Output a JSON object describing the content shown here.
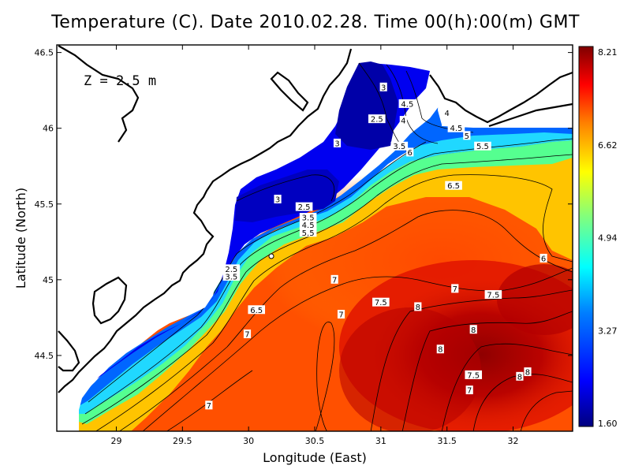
{
  "title": "Temperature (C). Date 2010.02.28. Time 00(h):00(m) GMT",
  "depth_label": "Z = 2.5 m",
  "chart_data": {
    "type": "heatmap",
    "variable": "Temperature (C)",
    "date": "2010.02.28",
    "time": "00(h):00(m) GMT",
    "depth": "2.5 m",
    "xlabel": "Longitude (East)",
    "ylabel": "Latitude (North)",
    "xlim": [
      28.55,
      32.45
    ],
    "ylim": [
      44.0,
      46.55
    ],
    "x_ticks": [
      29,
      29.5,
      30,
      30.5,
      31,
      31.5,
      32
    ],
    "y_ticks": [
      44.5,
      45,
      45.5,
      46,
      46.5
    ],
    "x_tick_labels": [
      "29",
      "29.5",
      "30",
      "30.5",
      "31",
      "31.5",
      "32"
    ],
    "y_tick_labels": [
      "44.5",
      "45",
      "45.5",
      "46",
      "46.5"
    ],
    "colorbar": {
      "min": 1.6,
      "max": 8.21,
      "labels": [
        "8.21",
        "6.62",
        "4.94",
        "3.27",
        "1.60"
      ],
      "colors": [
        "#00007f",
        "#0000ff",
        "#007fff",
        "#00ffff",
        "#7fff7f",
        "#ffff00",
        "#ff7f00",
        "#ff0000",
        "#7f0000"
      ]
    },
    "contour_labels": [
      {
        "text": "3",
        "lon": 31.02,
        "lat": 46.27
      },
      {
        "text": "4.5",
        "lon": 31.2,
        "lat": 46.16
      },
      {
        "text": "4",
        "lon": 31.17,
        "lat": 46.05
      },
      {
        "text": "2.5",
        "lon": 30.97,
        "lat": 46.06
      },
      {
        "text": "4",
        "lon": 31.5,
        "lat": 46.1
      },
      {
        "text": "4.5",
        "lon": 31.57,
        "lat": 46.0
      },
      {
        "text": "5",
        "lon": 31.65,
        "lat": 45.95
      },
      {
        "text": "5.5",
        "lon": 31.77,
        "lat": 45.88
      },
      {
        "text": "3",
        "lon": 30.67,
        "lat": 45.9
      },
      {
        "text": "3.5",
        "lon": 31.14,
        "lat": 45.88
      },
      {
        "text": "6",
        "lon": 31.22,
        "lat": 45.84
      },
      {
        "text": "6.5",
        "lon": 31.55,
        "lat": 45.62
      },
      {
        "text": "3",
        "lon": 30.22,
        "lat": 45.53
      },
      {
        "text": "2.5",
        "lon": 30.42,
        "lat": 45.48
      },
      {
        "text": "3.5",
        "lon": 30.45,
        "lat": 45.41
      },
      {
        "text": "4.5",
        "lon": 30.45,
        "lat": 45.36
      },
      {
        "text": "5.5",
        "lon": 30.45,
        "lat": 45.31
      },
      {
        "text": "6",
        "lon": 32.23,
        "lat": 45.14
      },
      {
        "text": "2.5",
        "lon": 29.87,
        "lat": 45.07
      },
      {
        "text": "3.5",
        "lon": 29.87,
        "lat": 45.02
      },
      {
        "text": "7",
        "lon": 30.65,
        "lat": 45.0
      },
      {
        "text": "7",
        "lon": 31.56,
        "lat": 44.94
      },
      {
        "text": "7.5",
        "lon": 31.85,
        "lat": 44.9
      },
      {
        "text": "7.5",
        "lon": 31.0,
        "lat": 44.85
      },
      {
        "text": "8",
        "lon": 31.28,
        "lat": 44.82
      },
      {
        "text": "6.5",
        "lon": 30.06,
        "lat": 44.8
      },
      {
        "text": "7",
        "lon": 30.7,
        "lat": 44.77
      },
      {
        "text": "8",
        "lon": 31.7,
        "lat": 44.67
      },
      {
        "text": "7",
        "lon": 29.99,
        "lat": 44.64
      },
      {
        "text": "8",
        "lon": 31.45,
        "lat": 44.54
      },
      {
        "text": "7.5",
        "lon": 31.7,
        "lat": 44.37
      },
      {
        "text": "8",
        "lon": 32.05,
        "lat": 44.36
      },
      {
        "text": "8",
        "lon": 32.11,
        "lat": 44.39
      },
      {
        "text": "7",
        "lon": 31.67,
        "lat": 44.27
      },
      {
        "text": "7",
        "lon": 29.7,
        "lat": 44.17
      }
    ]
  }
}
